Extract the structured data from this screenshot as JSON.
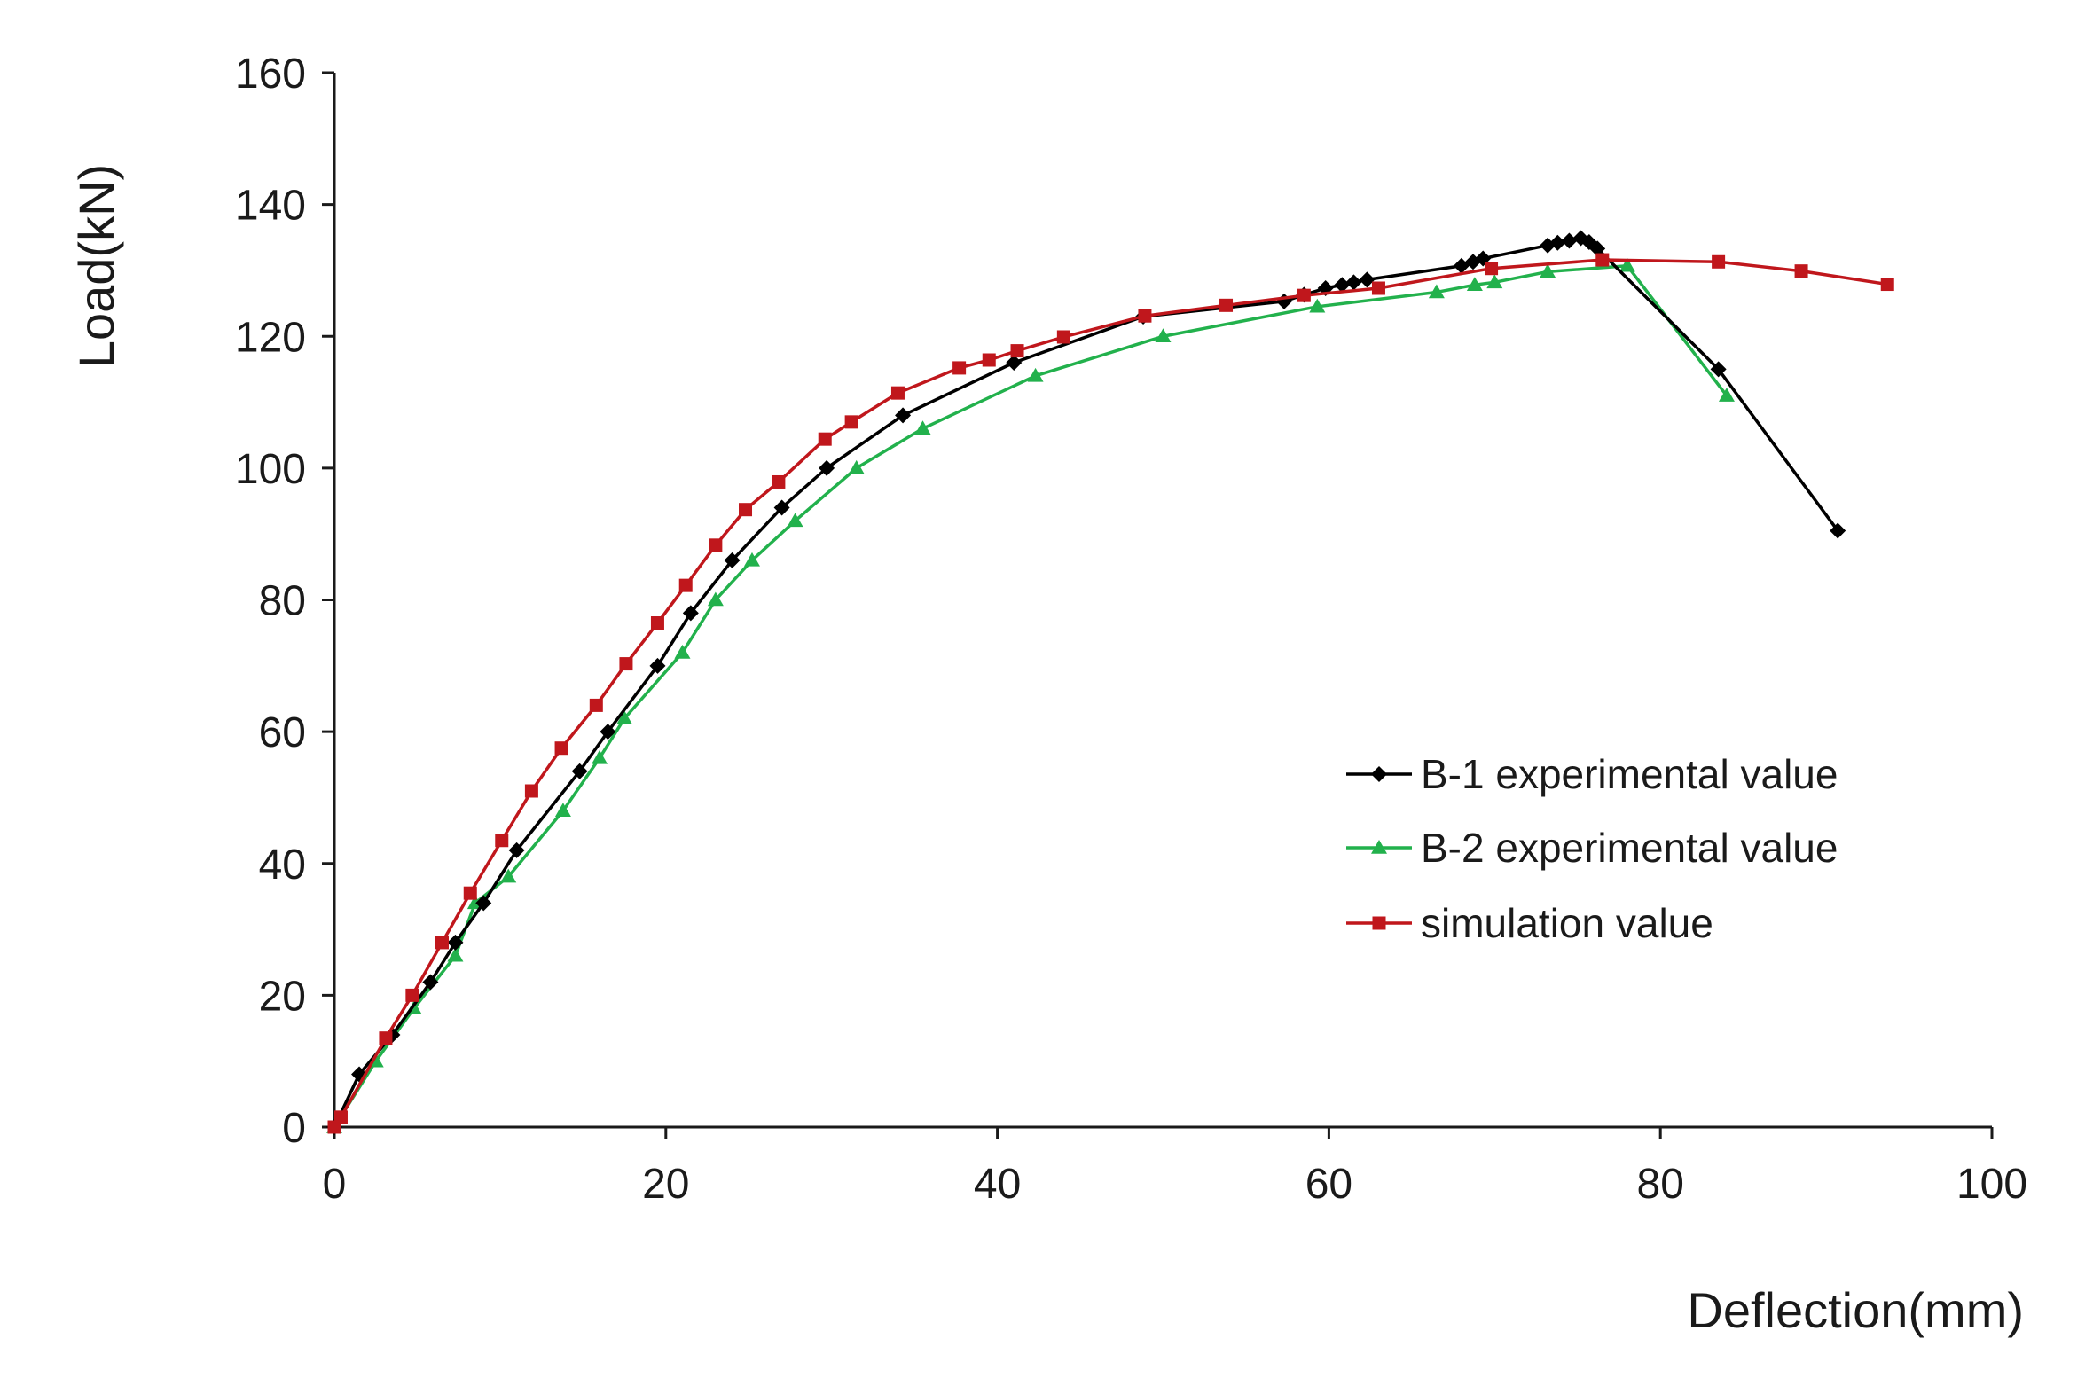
{
  "chart_data": {
    "type": "line",
    "title": "",
    "xlabel": "Deflection(mm)",
    "ylabel": "Load(kN)",
    "xlim": [
      0,
      100
    ],
    "ylim": [
      0,
      160
    ],
    "xticks": [
      0,
      20,
      40,
      60,
      80,
      100
    ],
    "yticks": [
      0,
      20,
      40,
      60,
      80,
      100,
      120,
      140,
      160
    ],
    "grid": false,
    "legend_position": "center-right",
    "series": [
      {
        "name": "B-1 experimental value",
        "color": "#000000",
        "marker": "diamond",
        "x": [
          0,
          1.5,
          3.5,
          5.8,
          7.3,
          9,
          11,
          14.8,
          16.5,
          19.5,
          21.5,
          24,
          27,
          29.7,
          34.3,
          41,
          48.8,
          57.3,
          58.5,
          59.8,
          60.8,
          61.5,
          62.3,
          68,
          68.7,
          69.3,
          73.2,
          73.8,
          74.5,
          75.2,
          75.7,
          76.2,
          83.5,
          90.7
        ],
        "y": [
          0,
          8,
          14,
          22,
          28,
          34,
          42,
          54,
          60,
          70,
          78,
          86,
          94,
          100,
          108,
          116,
          123,
          125.3,
          126.3,
          127.3,
          127.8,
          128.2,
          128.6,
          130.7,
          131.3,
          131.8,
          133.8,
          134.2,
          134.5,
          134.9,
          134.3,
          133.3,
          115,
          90.5
        ]
      },
      {
        "name": "B-2 experimental value",
        "color": "#22b14c",
        "marker": "triangle",
        "x": [
          0,
          2.5,
          4.8,
          7.3,
          8.5,
          10.5,
          13.8,
          16,
          17.5,
          21,
          23,
          25.2,
          27.8,
          31.5,
          35.5,
          42.3,
          50,
          59.3,
          66.5,
          68.8,
          70,
          73.2,
          78,
          84
        ],
        "y": [
          0,
          10,
          18,
          26,
          34,
          38,
          48,
          56,
          62,
          72,
          80,
          86,
          92,
          100,
          106,
          114,
          120,
          124.5,
          126.7,
          127.8,
          128.2,
          129.8,
          130.7,
          111
        ]
      },
      {
        "name": "simulation value",
        "color": "#c0171c",
        "marker": "square",
        "x": [
          0,
          0.4,
          3.1,
          4.7,
          6.5,
          8.2,
          10.1,
          11.9,
          13.7,
          15.8,
          17.6,
          19.5,
          21.2,
          23,
          24.8,
          26.8,
          29.6,
          31.2,
          34,
          37.7,
          39.5,
          41.2,
          44,
          48.9,
          53.8,
          58.5,
          63,
          69.8,
          76.5,
          83.5,
          88.5,
          93.7
        ],
        "y": [
          0,
          1.5,
          13.5,
          20,
          28,
          35.5,
          43.5,
          51,
          57.5,
          64,
          70.3,
          76.5,
          82.2,
          88.3,
          93.7,
          97.9,
          104.4,
          107,
          111.4,
          115.2,
          116.4,
          117.8,
          119.9,
          123.1,
          124.7,
          126.2,
          127.3,
          130.3,
          131.6,
          131.3,
          129.9,
          127.9
        ]
      }
    ]
  }
}
